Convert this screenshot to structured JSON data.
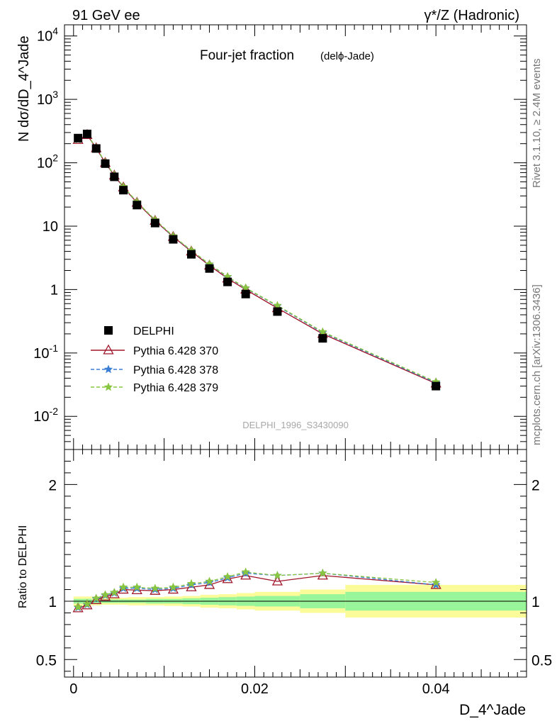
{
  "header": {
    "left_label": "91 GeV ee",
    "right_label": "γ*/Z (Hadronic)"
  },
  "side_labels": {
    "rivet": "Rivet 3.1.10, ≥ 2.4M events",
    "mcplots": "mcplots.cern.ch [arXiv:1306.3436]"
  },
  "chart_data": [
    {
      "type": "line",
      "title": "Four-jet fraction",
      "subtitle": "(delϕ-Jade)",
      "watermark": "DELPHI_1996_S3430090",
      "xlabel": "D_4^Jade",
      "ylabel": "N dσ/dD_4^Jade",
      "xlim": [
        -0.001,
        0.05
      ],
      "ylim": [
        0.003,
        15000
      ],
      "log_y": true,
      "ytick_labels": [
        "10^-2",
        "10^-1",
        "1",
        "10",
        "10^2",
        "10^3",
        "10^4"
      ],
      "legend_position": "left-middle",
      "series": [
        {
          "name": "DELPHI",
          "style": "data",
          "color": "#000000",
          "marker": "square",
          "x": [
            0.0005,
            0.0015,
            0.0025,
            0.0035,
            0.0045,
            0.0055,
            0.007,
            0.009,
            0.011,
            0.013,
            0.015,
            0.017,
            0.019,
            0.0225,
            0.0275,
            0.04
          ],
          "y": [
            245,
            285,
            168,
            97,
            60,
            37,
            21.5,
            11.2,
            6.2,
            3.6,
            2.15,
            1.32,
            0.85,
            0.45,
            0.17,
            0.03
          ]
        },
        {
          "name": "Pythia 6.428 370",
          "style": "solid",
          "color": "#a0162b",
          "marker": "triangle",
          "x": [
            0.0005,
            0.0015,
            0.0025,
            0.0035,
            0.0045,
            0.0055,
            0.007,
            0.009,
            0.011,
            0.013,
            0.015,
            0.017,
            0.019,
            0.0225,
            0.0275,
            0.04
          ],
          "y": [
            230,
            275,
            170,
            100,
            63,
            41,
            23.5,
            12.2,
            6.8,
            4.0,
            2.4,
            1.5,
            1.0,
            0.51,
            0.2,
            0.033
          ]
        },
        {
          "name": "Pythia 6.428 378",
          "style": "dashed",
          "color": "#3a7fd5",
          "marker": "star",
          "x": [
            0.0005,
            0.0015,
            0.0025,
            0.0035,
            0.0045,
            0.0055,
            0.007,
            0.009,
            0.011,
            0.013,
            0.015,
            0.017,
            0.019,
            0.0225,
            0.0275,
            0.04
          ],
          "y": [
            232,
            278,
            172,
            101,
            64,
            41.5,
            24,
            12.5,
            6.9,
            4.1,
            2.5,
            1.58,
            1.05,
            0.55,
            0.21,
            0.034
          ]
        },
        {
          "name": "Pythia 6.428 379",
          "style": "dashed",
          "color": "#88c541",
          "marker": "star",
          "x": [
            0.0005,
            0.0015,
            0.0025,
            0.0035,
            0.0045,
            0.0055,
            0.007,
            0.009,
            0.011,
            0.013,
            0.015,
            0.017,
            0.019,
            0.0225,
            0.0275,
            0.04
          ],
          "y": [
            233,
            279,
            173,
            102,
            64.5,
            42,
            24.2,
            12.6,
            7.0,
            4.15,
            2.52,
            1.6,
            1.06,
            0.56,
            0.215,
            0.035
          ]
        }
      ]
    },
    {
      "type": "line",
      "ylabel": "Ratio to DELPHI",
      "xlabel": "D_4^Jade",
      "xlim": [
        -0.001,
        0.05
      ],
      "ylim": [
        0.35,
        2.3
      ],
      "xtick_labels": [
        "0",
        "0.02",
        "0.04"
      ],
      "ytick_labels": [
        "0.5",
        "1",
        "2"
      ],
      "bands": {
        "x_edges": [
          0,
          0.001,
          0.002,
          0.003,
          0.004,
          0.005,
          0.006,
          0.008,
          0.01,
          0.012,
          0.014,
          0.016,
          0.018,
          0.02,
          0.025,
          0.03,
          0.05
        ],
        "inner_half": [
          0.02,
          0.02,
          0.015,
          0.015,
          0.015,
          0.015,
          0.015,
          0.02,
          0.02,
          0.025,
          0.03,
          0.035,
          0.04,
          0.045,
          0.06,
          0.08
        ],
        "outer_half": [
          0.04,
          0.04,
          0.035,
          0.03,
          0.03,
          0.03,
          0.035,
          0.035,
          0.04,
          0.045,
          0.055,
          0.06,
          0.07,
          0.08,
          0.1,
          0.14
        ],
        "inner_color": "#99f599",
        "outer_color": "#fbfb99"
      },
      "series": [
        {
          "name": "Pythia 6.428 370",
          "color": "#a0162b",
          "y": [
            0.94,
            0.965,
            1.01,
            1.04,
            1.06,
            1.1,
            1.095,
            1.09,
            1.1,
            1.12,
            1.14,
            1.19,
            1.22,
            1.17,
            1.22,
            1.14
          ]
        },
        {
          "name": "Pythia 6.428 378",
          "color": "#3a7fd5",
          "y": [
            0.945,
            0.97,
            1.02,
            1.05,
            1.07,
            1.11,
            1.11,
            1.1,
            1.11,
            1.14,
            1.16,
            1.2,
            1.24,
            1.22,
            1.24,
            1.14
          ]
        },
        {
          "name": "Pythia 6.428 379",
          "color": "#88c541",
          "y": [
            0.95,
            0.975,
            1.025,
            1.055,
            1.075,
            1.12,
            1.12,
            1.11,
            1.12,
            1.15,
            1.17,
            1.21,
            1.25,
            1.22,
            1.24,
            1.16
          ]
        }
      ]
    }
  ]
}
